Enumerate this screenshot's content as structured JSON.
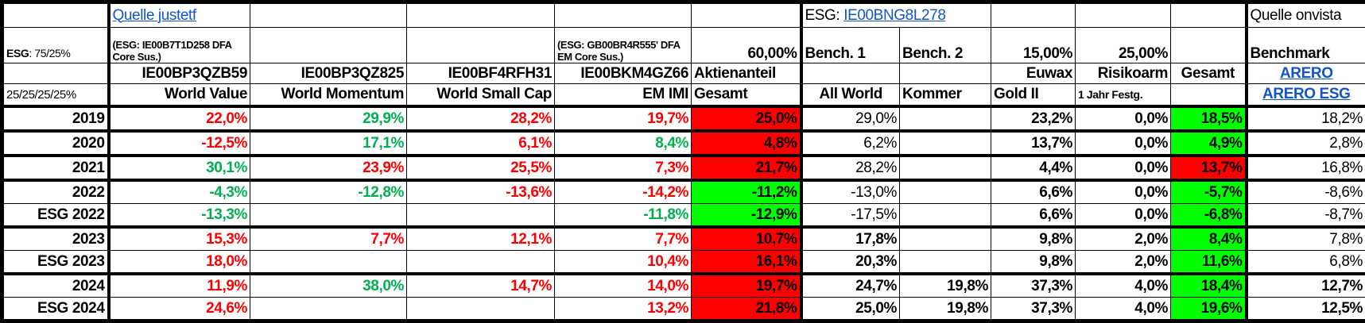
{
  "header": {
    "source_justetf": "Quelle justetf",
    "esg_prefix": "ESG: ",
    "esg_isin_link": "IE00BNG8L278",
    "source_onvista": "Quelle onvista",
    "esg_label": "ESG",
    "esg_ratio": ": 75/25%",
    "esg_note_1": "(ESG: IE00B7T1D258 DFA Core Sus.)",
    "esg_note_4": "(ESG: GB00BR4R555' DFA EM Core Sus.)",
    "equity_share": "60,00%",
    "bench1": "Bench. 1",
    "bench2": "Bench. 2",
    "gold_share": "15,00%",
    "lowrisk_share": "25,00%",
    "benchmark": "Benchmark",
    "isins": [
      "IE00BP3QZB59",
      "IE00BP3QZ825",
      "IE00BF4RFH31",
      "IE00BKM4GZ66"
    ],
    "aktienanteil": "Aktienanteil",
    "euwax": "Euwax",
    "risikoarm": "Risikoarm",
    "gesamt_total": "Gesamt",
    "arero_link": "ARERO",
    "weights": "25/25/25/25%",
    "names": [
      "World Value",
      "World Momentum",
      "World Small Cap",
      "EM IMI"
    ],
    "gesamt": "Gesamt",
    "all_world": "All World",
    "kommer": "Kommer",
    "gold2": "Gold II",
    "festgeld": "1 Jahr Festg.",
    "arero_esg_link": "ARERO ESG"
  },
  "colors": {
    "red": "#ff0000",
    "green": "#00b050",
    "fill_red": "#ff0000",
    "fill_green": "#00ff00",
    "link": "#1155cc"
  },
  "rows": [
    {
      "label": "2019",
      "thick": true,
      "cells": [
        {
          "v": "22,0%",
          "c": "red"
        },
        {
          "v": "29,9%",
          "c": "green"
        },
        {
          "v": "28,2%",
          "c": "red"
        },
        {
          "v": "19,7%",
          "c": "red"
        },
        {
          "v": "25,0%",
          "bg": "fill_red"
        },
        {
          "v": "29,0%",
          "n": true
        },
        {
          "v": ""
        },
        {
          "v": "23,2%"
        },
        {
          "v": "0,0%"
        },
        {
          "v": "18,5%",
          "bg": "fill_green"
        },
        {
          "v": "18,2%",
          "n": true
        }
      ]
    },
    {
      "label": "2020",
      "thick": true,
      "cells": [
        {
          "v": "-12,5%",
          "c": "red"
        },
        {
          "v": "17,1%",
          "c": "green"
        },
        {
          "v": "6,1%",
          "c": "red"
        },
        {
          "v": "8,4%",
          "c": "green"
        },
        {
          "v": "4,8%",
          "bg": "fill_red"
        },
        {
          "v": "6,2%",
          "n": true
        },
        {
          "v": ""
        },
        {
          "v": "13,7%"
        },
        {
          "v": "0,0%"
        },
        {
          "v": "4,9%",
          "bg": "fill_green"
        },
        {
          "v": "2,8%",
          "n": true
        }
      ]
    },
    {
      "label": "2021",
      "thick": true,
      "cells": [
        {
          "v": "30,1%",
          "c": "green"
        },
        {
          "v": "23,9%",
          "c": "red"
        },
        {
          "v": "25,5%",
          "c": "red"
        },
        {
          "v": "7,3%",
          "c": "red"
        },
        {
          "v": "21,7%",
          "bg": "fill_red"
        },
        {
          "v": "28,2%",
          "n": true
        },
        {
          "v": ""
        },
        {
          "v": "4,4%"
        },
        {
          "v": "0,0%"
        },
        {
          "v": "13,7%",
          "bg": "fill_red"
        },
        {
          "v": "16,8%",
          "n": true
        }
      ]
    },
    {
      "label": "2022",
      "cells": [
        {
          "v": "-4,3%",
          "c": "green"
        },
        {
          "v": "-12,8%",
          "c": "green"
        },
        {
          "v": "-13,6%",
          "c": "red"
        },
        {
          "v": "-14,2%",
          "c": "red"
        },
        {
          "v": "-11,2%",
          "bg": "fill_green"
        },
        {
          "v": "-13,0%",
          "n": true
        },
        {
          "v": ""
        },
        {
          "v": "6,6%"
        },
        {
          "v": "0,0%"
        },
        {
          "v": "-5,7%",
          "bg": "fill_green"
        },
        {
          "v": "-8,6%",
          "n": true
        }
      ]
    },
    {
      "label": "ESG 2022",
      "thick": true,
      "cells": [
        {
          "v": "-13,3%",
          "c": "green"
        },
        {
          "v": ""
        },
        {
          "v": ""
        },
        {
          "v": "-11,8%",
          "c": "green"
        },
        {
          "v": "-12,9%",
          "bg": "fill_green"
        },
        {
          "v": "-17,5%",
          "n": true
        },
        {
          "v": ""
        },
        {
          "v": "6,6%"
        },
        {
          "v": "0,0%"
        },
        {
          "v": "-6,8%",
          "bg": "fill_green"
        },
        {
          "v": "-8,7%",
          "n": true
        }
      ]
    },
    {
      "label": "2023",
      "cells": [
        {
          "v": "15,3%",
          "c": "red"
        },
        {
          "v": "7,7%",
          "c": "red"
        },
        {
          "v": "12,1%",
          "c": "red"
        },
        {
          "v": "7,7%",
          "c": "red"
        },
        {
          "v": "10,7%",
          "bg": "fill_red"
        },
        {
          "v": "17,8%"
        },
        {
          "v": ""
        },
        {
          "v": "9,8%"
        },
        {
          "v": "2,0%"
        },
        {
          "v": "8,4%",
          "bg": "fill_green"
        },
        {
          "v": "7,8%",
          "n": true
        }
      ]
    },
    {
      "label": "ESG 2023",
      "thick": true,
      "cells": [
        {
          "v": "18,0%",
          "c": "red"
        },
        {
          "v": ""
        },
        {
          "v": ""
        },
        {
          "v": "10,4%",
          "c": "red"
        },
        {
          "v": "16,1%",
          "bg": "fill_red"
        },
        {
          "v": "20,3%"
        },
        {
          "v": ""
        },
        {
          "v": "9,8%"
        },
        {
          "v": "2,0%"
        },
        {
          "v": "11,6%",
          "bg": "fill_green"
        },
        {
          "v": "6,8%",
          "n": true
        }
      ]
    },
    {
      "label": "2024",
      "cells": [
        {
          "v": "11,9%",
          "c": "red"
        },
        {
          "v": "38,0%",
          "c": "green"
        },
        {
          "v": "14,7%",
          "c": "red"
        },
        {
          "v": "14,0%",
          "c": "red"
        },
        {
          "v": "19,7%",
          "bg": "fill_red"
        },
        {
          "v": "24,7%"
        },
        {
          "v": "19,8%"
        },
        {
          "v": "37,3%"
        },
        {
          "v": "4,0%"
        },
        {
          "v": "18,4%",
          "bg": "fill_green"
        },
        {
          "v": "12,7%"
        }
      ]
    },
    {
      "label": "ESG 2024",
      "cells": [
        {
          "v": "24,6%",
          "c": "red"
        },
        {
          "v": ""
        },
        {
          "v": ""
        },
        {
          "v": "13,2%",
          "c": "red"
        },
        {
          "v": "21,8%",
          "bg": "fill_red"
        },
        {
          "v": "25,0%"
        },
        {
          "v": "19,8%"
        },
        {
          "v": "37,3%"
        },
        {
          "v": "4,0%"
        },
        {
          "v": "19,6%",
          "bg": "fill_green"
        },
        {
          "v": "12,5%"
        }
      ]
    }
  ]
}
